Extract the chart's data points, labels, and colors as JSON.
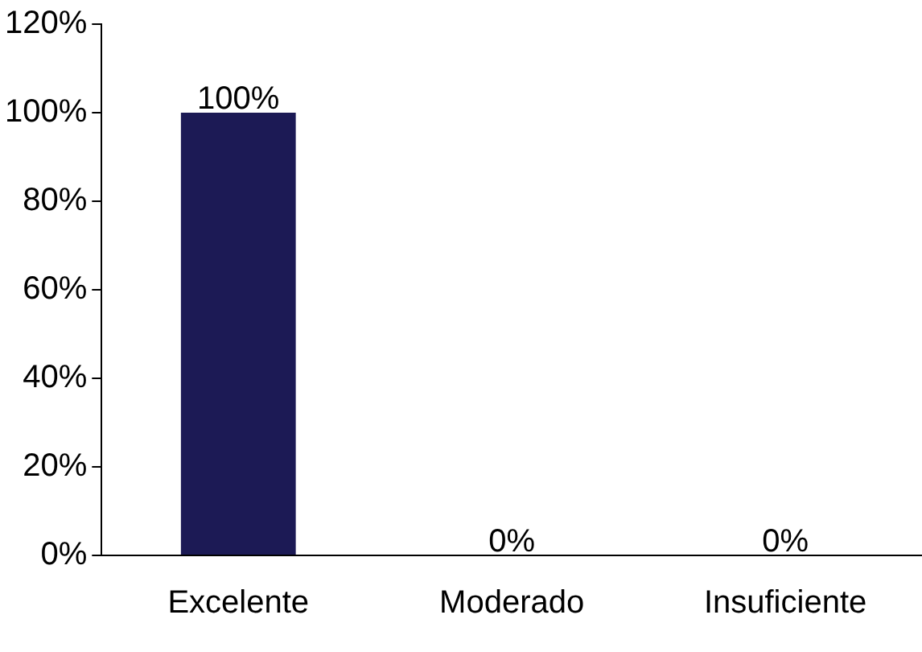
{
  "chart_data": {
    "type": "bar",
    "categories": [
      "Excelente",
      "Moderado",
      "Insuficiente"
    ],
    "values": [
      100,
      0,
      0
    ],
    "color": "#1c1a55",
    "value_labels": [
      "100%",
      "0%",
      "0%"
    ],
    "ylim": [
      0,
      120
    ],
    "yticks": [
      {
        "value": 0,
        "label": "0%"
      },
      {
        "value": 20,
        "label": "20%"
      },
      {
        "value": 40,
        "label": "40%"
      },
      {
        "value": 60,
        "label": "60%"
      },
      {
        "value": 80,
        "label": "80%"
      },
      {
        "value": 100,
        "label": "100%"
      },
      {
        "value": 120,
        "label": "120%"
      }
    ],
    "grid": false,
    "legend": false
  }
}
